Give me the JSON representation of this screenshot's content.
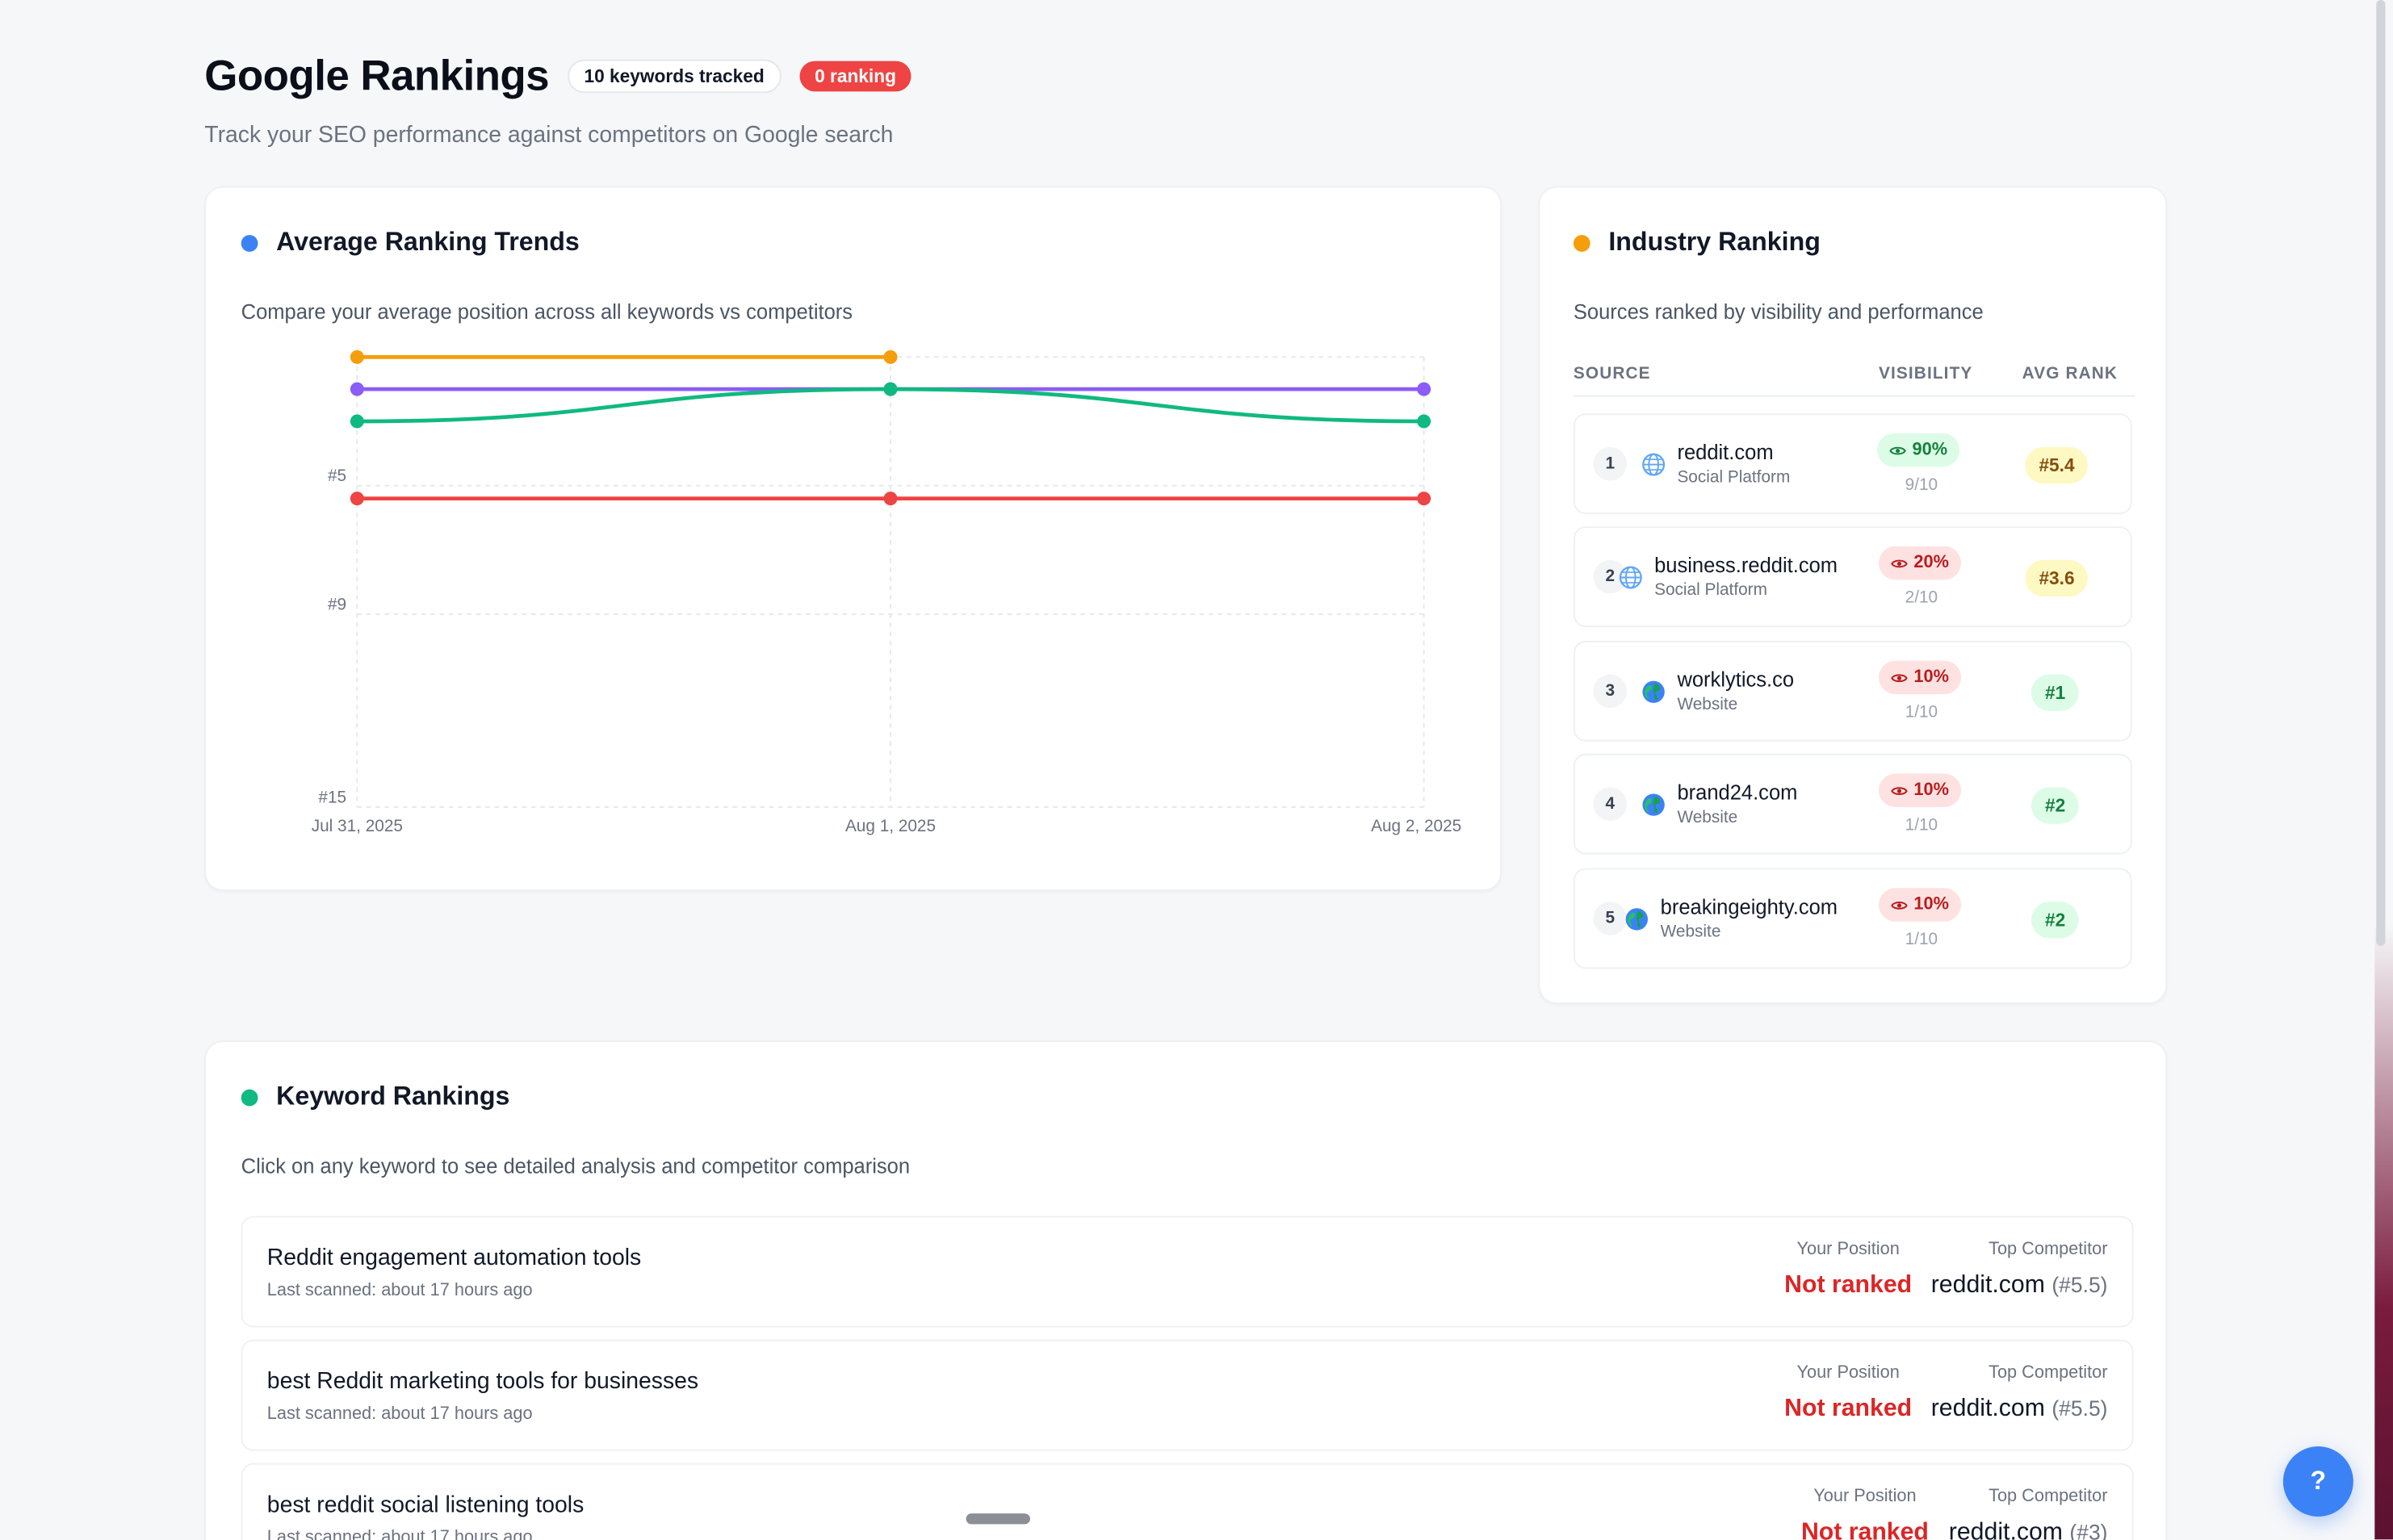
{
  "header": {
    "title": "Google Rankings",
    "keywords_badge": "10 keywords tracked",
    "ranking_badge": "0 ranking",
    "subtitle": "Track your SEO performance against competitors on Google search"
  },
  "trends": {
    "title": "Average Ranking Trends",
    "description": "Compare your average position across all keywords vs competitors",
    "dot_color": "#3b82f6"
  },
  "chart_data": {
    "type": "line",
    "title": "",
    "x": [
      "Jul 31, 2025",
      "Aug 1, 2025",
      "Aug 2, 2025"
    ],
    "y_ticks": [
      "#5",
      "#9",
      "#15"
    ],
    "ylim": [
      1,
      15
    ],
    "y_inverted": true,
    "grid": true,
    "series": [
      {
        "color": "#f59e0b",
        "values": [
          1,
          1,
          null
        ]
      },
      {
        "color": "#8b5cf6",
        "values": [
          2,
          2,
          2
        ]
      },
      {
        "color": "#10b981",
        "values": [
          3,
          2,
          3
        ]
      },
      {
        "color": "#ef4444",
        "values": [
          5.4,
          5.4,
          5.4
        ]
      }
    ]
  },
  "industry": {
    "title": "Industry Ranking",
    "description": "Sources ranked by visibility and performance",
    "dot_color": "#f59e0b",
    "columns": {
      "source": "SOURCE",
      "visibility": "VISIBILITY",
      "avg_rank": "AVG RANK"
    },
    "rows": [
      {
        "rank": "1",
        "name": "reddit.com",
        "type": "Social Platform",
        "icon": "globe-icon",
        "visibility": "90%",
        "count": "9/10",
        "avg": "#5.4",
        "vis_status": "good",
        "avg_status": "yellow"
      },
      {
        "rank": "2",
        "name": "business.reddit.com",
        "type": "Social Platform",
        "icon": "globe-icon",
        "visibility": "20%",
        "count": "2/10",
        "avg": "#3.6",
        "vis_status": "bad",
        "avg_status": "yellow"
      },
      {
        "rank": "3",
        "name": "worklytics.co",
        "type": "Website",
        "icon": "earth-icon",
        "visibility": "10%",
        "count": "1/10",
        "avg": "#1",
        "vis_status": "bad",
        "avg_status": "green"
      },
      {
        "rank": "4",
        "name": "brand24.com",
        "type": "Website",
        "icon": "earth-icon",
        "visibility": "10%",
        "count": "1/10",
        "avg": "#2",
        "vis_status": "bad",
        "avg_status": "green"
      },
      {
        "rank": "5",
        "name": "breakingeighty.com",
        "type": "Website",
        "icon": "earth-icon",
        "visibility": "10%",
        "count": "1/10",
        "avg": "#2",
        "vis_status": "bad",
        "avg_status": "green"
      }
    ]
  },
  "keywords": {
    "title": "Keyword Rankings",
    "description": "Click on any keyword to see detailed analysis and competitor comparison",
    "dot_color": "#10b981",
    "position_label": "Your Position",
    "competitor_label": "Top Competitor",
    "rows": [
      {
        "name": "Reddit engagement automation tools",
        "scanned": "Last scanned: about 17 hours ago",
        "position": "Not ranked",
        "competitor": "reddit.com",
        "competitor_rank": "(#5.5)"
      },
      {
        "name": "best Reddit marketing tools for businesses",
        "scanned": "Last scanned: about 17 hours ago",
        "position": "Not ranked",
        "competitor": "reddit.com",
        "competitor_rank": "(#5.5)"
      },
      {
        "name": "best reddit social listening tools",
        "scanned": "Last scanned: about 17 hours ago",
        "position": "Not ranked",
        "competitor": "reddit.com",
        "competitor_rank": "(#3)"
      }
    ]
  },
  "help": {
    "label": "?"
  }
}
